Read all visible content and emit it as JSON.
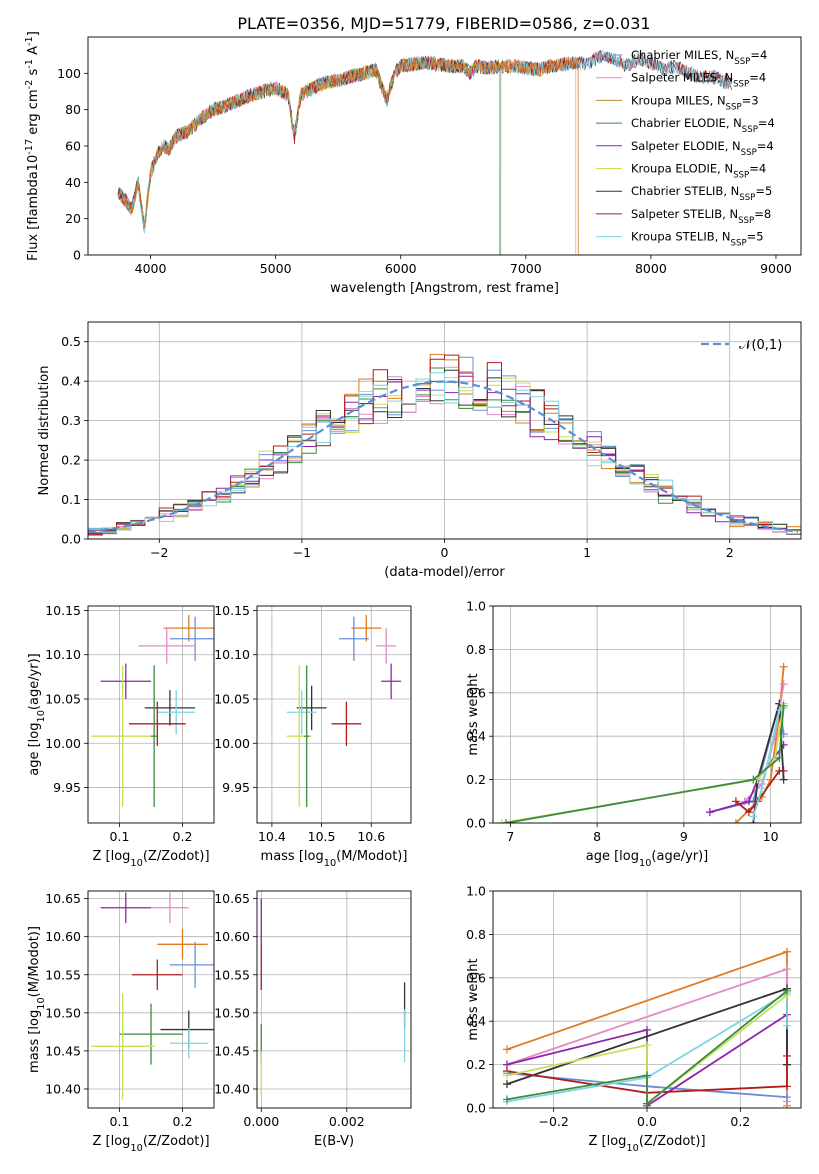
{
  "figure": {
    "title": "PLATE=0356, MJD=51779, FIBERID=0586, z=0.031"
  },
  "chart_data": [
    {
      "id": "spectrum",
      "type": "line",
      "xlabel": "wavelength [Angstrom, rest frame]",
      "ylabel": "Flux [f$_\\lambda$10$^{-17}$ erg cm$^{-2}$ s$^{-1}$ A$^{-1}$]",
      "xlim": [
        3500,
        9200
      ],
      "ylim": [
        0,
        120
      ],
      "xticks": [
        4000,
        5000,
        6000,
        7000,
        8000,
        9000
      ],
      "yticks": [
        0,
        20,
        40,
        60,
        80,
        100
      ],
      "legend_position": "right",
      "envelope": {
        "x": [
          3740,
          3800,
          3850,
          3900,
          3950,
          4000,
          4050,
          4100,
          4150,
          4200,
          4300,
          4400,
          4500,
          4600,
          4700,
          4800,
          4900,
          5000,
          5100,
          5150,
          5200,
          5300,
          5400,
          5500,
          5600,
          5700,
          5800,
          5890,
          5950,
          6000,
          6100,
          6200,
          6300,
          6400,
          6500,
          6562,
          6600,
          6700,
          6800,
          6900,
          7000,
          7100,
          7200,
          7300,
          7400,
          7500,
          7600,
          7700,
          7800,
          7900,
          8000,
          8100,
          8200,
          8300,
          8400,
          8500,
          8600,
          8650
        ],
        "y": [
          35,
          30,
          25,
          40,
          15,
          45,
          55,
          60,
          58,
          65,
          68,
          75,
          80,
          82,
          85,
          88,
          90,
          92,
          88,
          65,
          88,
          92,
          95,
          96,
          98,
          100,
          102,
          85,
          100,
          104,
          105,
          106,
          105,
          104,
          104,
          100,
          104,
          103,
          104,
          104,
          103,
          102,
          104,
          105,
          106,
          105,
          110,
          108,
          104,
          108,
          106,
          102,
          104,
          100,
          98,
          98,
          95,
          94
        ]
      },
      "series": [
        {
          "name": "Chabrier MILES, N$_{SSP}$=4",
          "color": "#6c8ed8",
          "xmax": 8650
        },
        {
          "name": "Salpeter MILES, N$_{SSP}$=4",
          "color": "#e589c3",
          "xmax": 7400
        },
        {
          "name": "Kroupa MILES, N$_{SSP}$=3",
          "color": "#b8912f",
          "xmax": 7420
        },
        {
          "name": "Chabrier ELODIE, N$_{SSP}$=4",
          "color": "#3d8a3d",
          "xmax": 6800
        },
        {
          "name": "Salpeter ELODIE, N$_{SSP}$=4",
          "color": "#8e24aa",
          "xmax": 6790
        },
        {
          "name": "Kroupa ELODIE, N$_{SSP}$=4",
          "color": "#c5e15a",
          "xmax": 6790
        },
        {
          "name": "Chabrier STELIB, N$_{SSP}$=5",
          "color": "#333333",
          "xmax": 8650
        },
        {
          "name": "Salpeter STELIB, N$_{SSP}$=8",
          "color": "#b01c1c",
          "xmax": 8650
        },
        {
          "name": "Kroupa STELIB, N$_{SSP}$=5",
          "color": "#7fd4e0",
          "xmax": 8650
        }
      ],
      "extra_lines": [
        {
          "color": "#e07b20",
          "xmax": 7420
        }
      ]
    },
    {
      "id": "residuals",
      "type": "line",
      "xlabel": "(data-model)/error",
      "ylabel": "Normed distribution",
      "xlim": [
        -2.5,
        2.5
      ],
      "ylim": [
        0,
        0.55
      ],
      "xticks": [
        -2,
        -1,
        0,
        1,
        2
      ],
      "yticks": [
        0.0,
        0.1,
        0.2,
        0.3,
        0.4,
        0.5
      ],
      "grid": true,
      "legend": "$\\mathcal{N}(0,1)$",
      "legend_position": "top-right",
      "gaussian_color": "#5b8fd6",
      "hist_colors": [
        "#6c8ed8",
        "#e589c3",
        "#e07b20",
        "#3d8a3d",
        "#8e24aa",
        "#c5e15a",
        "#333333",
        "#b01c1c",
        "#7fd4e0"
      ]
    },
    {
      "id": "age-vs-Z",
      "type": "scatter",
      "xlabel": "Z [log$_{10}$($Z/Z_\\odot$)]",
      "ylabel": "age  [log$_{10}$($age/yr$)]",
      "xlim": [
        0.05,
        0.25
      ],
      "ylim": [
        9.91,
        10.155
      ],
      "xticks": [
        0.1,
        0.2
      ],
      "yticks": [
        9.95,
        10.0,
        10.05,
        10.1,
        10.15
      ],
      "grid": true,
      "points": [
        {
          "color": "#e07b20",
          "x": 0.21,
          "y": 10.13,
          "xerr": 0.04,
          "yerr": 0.015
        },
        {
          "color": "#6c8ed8",
          "x": 0.22,
          "y": 10.118,
          "xerr": 0.04,
          "yerr": 0.025
        },
        {
          "color": "#e589c3",
          "x": 0.175,
          "y": 10.11,
          "xerr": 0.045,
          "yerr": 0.02
        },
        {
          "color": "#8e24aa",
          "x": 0.11,
          "y": 10.07,
          "xerr": 0.04,
          "yerr": 0.02
        },
        {
          "color": "#333333",
          "x": 0.18,
          "y": 10.04,
          "xerr": 0.04,
          "yerr": 0.02
        },
        {
          "color": "#7fd4e0",
          "x": 0.19,
          "y": 10.035,
          "xerr": 0.03,
          "yerr": 0.025
        },
        {
          "color": "#b01c1c",
          "x": 0.16,
          "y": 10.022,
          "xerr": 0.045,
          "yerr": 0.025
        },
        {
          "color": "#c5e15a",
          "x": 0.105,
          "y": 10.008,
          "xerr": 0.05,
          "yerr": 0.08
        },
        {
          "color": "#3d8a3d",
          "x": 0.155,
          "y": 10.008,
          "xerr": 0.005,
          "yerr": 0.08
        }
      ]
    },
    {
      "id": "age-vs-mass",
      "type": "scatter",
      "xlabel": "mass [log$_{10}$($M/M_\\odot$)]",
      "ylabel": "",
      "xlim": [
        10.37,
        10.68
      ],
      "ylim": [
        9.91,
        10.155
      ],
      "xticks": [
        10.4,
        10.5,
        10.6
      ],
      "yticks": [
        9.95,
        10.0,
        10.05,
        10.1,
        10.15
      ],
      "grid": true,
      "points": [
        {
          "color": "#e07b20",
          "x": 10.59,
          "y": 10.13,
          "xerr": 0.03,
          "yerr": 0.015
        },
        {
          "color": "#6c8ed8",
          "x": 10.565,
          "y": 10.118,
          "xerr": 0.03,
          "yerr": 0.025
        },
        {
          "color": "#e589c3",
          "x": 10.63,
          "y": 10.11,
          "xerr": 0.02,
          "yerr": 0.02
        },
        {
          "color": "#8e24aa",
          "x": 10.64,
          "y": 10.07,
          "xerr": 0.02,
          "yerr": 0.02
        },
        {
          "color": "#333333",
          "x": 10.48,
          "y": 10.04,
          "xerr": 0.03,
          "yerr": 0.025
        },
        {
          "color": "#7fd4e0",
          "x": 10.46,
          "y": 10.035,
          "xerr": 0.03,
          "yerr": 0.025
        },
        {
          "color": "#b01c1c",
          "x": 10.55,
          "y": 10.022,
          "xerr": 0.03,
          "yerr": 0.025
        },
        {
          "color": "#c5e15a",
          "x": 10.455,
          "y": 10.008,
          "xerr": 0.025,
          "yerr": 0.08
        },
        {
          "color": "#3d8a3d",
          "x": 10.47,
          "y": 10.008,
          "xerr": 0.005,
          "yerr": 0.08
        }
      ]
    },
    {
      "id": "mass-weight-vs-age",
      "type": "line",
      "xlabel": "age  [log$_{10}$($age/yr$)]",
      "ylabel": "mass weight",
      "xlim": [
        6.8,
        10.35
      ],
      "ylim": [
        0,
        1.0
      ],
      "xticks": [
        7,
        8,
        9,
        10
      ],
      "yticks": [
        0.0,
        0.2,
        0.4,
        0.6,
        0.8,
        1.0
      ],
      "grid": true,
      "series": [
        {
          "color": "#e07b20",
          "x": [
            9.6,
            9.9,
            10.0,
            10.1,
            10.15
          ],
          "y": [
            0.0,
            0.12,
            0.2,
            0.5,
            0.72
          ]
        },
        {
          "color": "#e589c3",
          "x": [
            9.7,
            9.9,
            10.05,
            10.15
          ],
          "y": [
            0.1,
            0.18,
            0.4,
            0.64
          ]
        },
        {
          "color": "#6c8ed8",
          "x": [
            9.3,
            9.8,
            10.1,
            10.15
          ],
          "y": [
            0.05,
            0.1,
            0.55,
            0.41
          ]
        },
        {
          "color": "#8e24aa",
          "x": [
            9.3,
            9.75,
            9.85,
            10.15
          ],
          "y": [
            0.05,
            0.1,
            0.2,
            0.36
          ]
        },
        {
          "color": "#333333",
          "x": [
            9.8,
            9.85,
            10.1,
            10.15
          ],
          "y": [
            0.0,
            0.2,
            0.55,
            0.2
          ]
        },
        {
          "color": "#b01c1c",
          "x": [
            9.6,
            9.75,
            9.85,
            10.1,
            10.15
          ],
          "y": [
            0.1,
            0.05,
            0.1,
            0.24,
            0.24
          ]
        },
        {
          "color": "#7fd4e0",
          "x": [
            9.8,
            9.9,
            10.1,
            10.15
          ],
          "y": [
            0.03,
            0.16,
            0.52,
            0.53
          ]
        },
        {
          "color": "#c5e15a",
          "x": [
            6.9,
            9.85,
            10.05,
            10.15
          ],
          "y": [
            0.0,
            0.2,
            0.3,
            0.55
          ]
        },
        {
          "color": "#3d8a3d",
          "x": [
            6.95,
            9.8,
            10.1,
            10.15
          ],
          "y": [
            0.0,
            0.2,
            0.3,
            0.54
          ]
        }
      ]
    },
    {
      "id": "mass-vs-Z",
      "type": "scatter",
      "xlabel": "Z [log$_{10}$($Z/Z_\\odot$)]",
      "ylabel": "mass [log$_{10}$($M/M_\\odot$)]",
      "xlim": [
        0.05,
        0.25
      ],
      "ylim": [
        10.375,
        10.66
      ],
      "xticks": [
        0.1,
        0.2
      ],
      "yticks": [
        10.4,
        10.45,
        10.5,
        10.55,
        10.6,
        10.65
      ],
      "grid": true,
      "points": [
        {
          "color": "#8e24aa",
          "x": 0.11,
          "y": 10.638,
          "xerr": 0.04,
          "yerr": 0.02
        },
        {
          "color": "#e589c3",
          "x": 0.18,
          "y": 10.638,
          "xerr": 0.03,
          "yerr": 0.02
        },
        {
          "color": "#e07b20",
          "x": 0.2,
          "y": 10.59,
          "xerr": 0.04,
          "yerr": 0.02
        },
        {
          "color": "#6c8ed8",
          "x": 0.22,
          "y": 10.563,
          "xerr": 0.04,
          "yerr": 0.03
        },
        {
          "color": "#b01c1c",
          "x": 0.16,
          "y": 10.55,
          "xerr": 0.04,
          "yerr": 0.02
        },
        {
          "color": "#333333",
          "x": 0.21,
          "y": 10.478,
          "xerr": 0.045,
          "yerr": 0.025
        },
        {
          "color": "#3d8a3d",
          "x": 0.15,
          "y": 10.472,
          "xerr": 0.05,
          "yerr": 0.04
        },
        {
          "color": "#7fd4e0",
          "x": 0.21,
          "y": 10.46,
          "xerr": 0.03,
          "yerr": 0.02
        },
        {
          "color": "#c5e15a",
          "x": 0.105,
          "y": 10.456,
          "xerr": 0.05,
          "yerr": 0.07
        }
      ]
    },
    {
      "id": "mass-vs-EBV",
      "type": "scatter",
      "xlabel": "E(B-V)",
      "ylabel": "",
      "xlim": [
        -0.0001,
        0.0035
      ],
      "ylim": [
        10.375,
        10.66
      ],
      "xticks": [
        0.0,
        0.002
      ],
      "xticklabels": [
        "0.000",
        "0.002"
      ],
      "yticks": [
        10.4,
        10.45,
        10.5,
        10.55,
        10.6,
        10.65
      ],
      "grid": true,
      "points": [
        {
          "color": "#8e24aa",
          "x": 0.0,
          "y": 10.62,
          "xerr": 0.0,
          "yerr": 0.03
        },
        {
          "color": "#b01c1c",
          "x": 0.0,
          "y": 10.56,
          "xerr": 0.0,
          "yerr": 0.03
        },
        {
          "color": "#3d8a3d",
          "x": 0.0,
          "y": 10.46,
          "xerr": 0.0,
          "yerr": 0.025
        },
        {
          "color": "#c5e15a",
          "x": 0.0,
          "y": 10.42,
          "xerr": 0.0,
          "yerr": 0.03
        },
        {
          "color": "#333333",
          "x": 0.00335,
          "y": 10.51,
          "xerr": 0.0,
          "yerr": 0.03
        },
        {
          "color": "#7fd4e0",
          "x": 0.00335,
          "y": 10.47,
          "xerr": 0.0,
          "yerr": 0.035
        }
      ]
    },
    {
      "id": "mass-weight-vs-Z",
      "type": "line",
      "xlabel": "Z [log$_{10}$($Z/Z_\\odot$)]",
      "ylabel": "mass weight",
      "xlim": [
        -0.33,
        0.33
      ],
      "ylim": [
        0,
        1.0
      ],
      "xticks": [
        -0.2,
        0.0,
        0.2
      ],
      "yticks": [
        0.0,
        0.2,
        0.4,
        0.6,
        0.8,
        1.0
      ],
      "grid": true,
      "series": [
        {
          "color": "#e07b20",
          "x": [
            -0.3,
            0.3,
            0.3
          ],
          "y": [
            0.27,
            0.72,
            0.01
          ]
        },
        {
          "color": "#e589c3",
          "x": [
            -0.3,
            0.3,
            0.3
          ],
          "y": [
            0.2,
            0.64,
            0.03
          ]
        },
        {
          "color": "#6c8ed8",
          "x": [
            -0.3,
            0.0,
            0.3
          ],
          "y": [
            0.16,
            0.1,
            0.05
          ]
        },
        {
          "color": "#8e24aa",
          "x": [
            -0.3,
            0.0,
            0.0,
            0.3,
            0.3
          ],
          "y": [
            0.2,
            0.36,
            0.01,
            0.43,
            0.2
          ]
        },
        {
          "color": "#333333",
          "x": [
            -0.3,
            0.3,
            0.3
          ],
          "y": [
            0.11,
            0.55,
            0.2
          ]
        },
        {
          "color": "#b01c1c",
          "x": [
            -0.3,
            0.0,
            0.3,
            0.3
          ],
          "y": [
            0.17,
            0.07,
            0.1,
            0.24
          ]
        },
        {
          "color": "#7fd4e0",
          "x": [
            -0.3,
            0.0,
            0.3,
            0.3
          ],
          "y": [
            0.03,
            0.14,
            0.53,
            0.38
          ]
        },
        {
          "color": "#c5e15a",
          "x": [
            -0.3,
            0.0,
            0.0,
            0.3
          ],
          "y": [
            0.15,
            0.29,
            0.02,
            0.52
          ]
        },
        {
          "color": "#3d8a3d",
          "x": [
            -0.3,
            0.0,
            0.0,
            0.3
          ],
          "y": [
            0.04,
            0.15,
            0.02,
            0.54
          ]
        }
      ]
    }
  ]
}
